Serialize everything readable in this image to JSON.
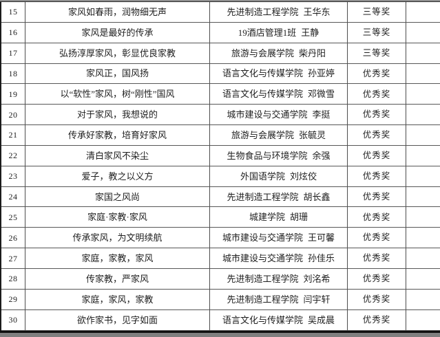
{
  "page": {
    "background": "#ffffff",
    "top_edge_color": "#8f8f8f",
    "bottom_edge_color": "#7f7f7f",
    "grid_line_color": "#4c4c4c",
    "text_color": "#1e1e1e"
  },
  "table": {
    "rows": [
      {
        "no": "15",
        "title": "家风如春雨，润物细无声",
        "affiliation": "先进制造工程学院",
        "name": "王华东",
        "award": "三等奖"
      },
      {
        "no": "16",
        "title": "家风是最好的传承",
        "affiliation": "19酒店管理1班",
        "name": "王静",
        "award": "三等奖"
      },
      {
        "no": "17",
        "title": "弘扬淳厚家风，彰显优良家教",
        "affiliation": "旅游与会展学院",
        "name": "柴丹阳",
        "award": "三等奖"
      },
      {
        "no": "18",
        "title": "家风正，国风扬",
        "affiliation": "语言文化与传媒学院",
        "name": "孙亚婷",
        "award": "优秀奖"
      },
      {
        "no": "19",
        "title": "以“软性”家风，树“刚性”国风",
        "affiliation": "语言文化与传媒学院",
        "name": "邓微雪",
        "award": "优秀奖"
      },
      {
        "no": "20",
        "title": "对于家风，我想说的",
        "affiliation": "城市建设与交通学院",
        "name": "李挺",
        "award": "优秀奖"
      },
      {
        "no": "21",
        "title": "传承好家教，培育好家风",
        "affiliation": "旅游与会展学院",
        "name": "张毓灵",
        "award": "优秀奖"
      },
      {
        "no": "22",
        "title": "清白家风不染尘",
        "affiliation": "生物食品与环境学院",
        "name": "余强",
        "award": "优秀奖"
      },
      {
        "no": "23",
        "title": "爱子，教之以义方",
        "affiliation": "外国语学院",
        "name": "刘炫佼",
        "award": "优秀奖"
      },
      {
        "no": "24",
        "title": "家国之风尚",
        "affiliation": "先进制造工程学院",
        "name": "胡长鑫",
        "award": "优秀奖"
      },
      {
        "no": "25",
        "title": "家庭·家教·家风",
        "affiliation": "城建学院",
        "name": "胡珊",
        "award": "优秀奖"
      },
      {
        "no": "26",
        "title": "传承家风，为文明续航",
        "affiliation": "城市建设与交通学院",
        "name": "王可馨",
        "award": "优秀奖"
      },
      {
        "no": "27",
        "title": "家庭，家教，家风",
        "affiliation": "城市建设与交通学院",
        "name": "孙佳乐",
        "award": "优秀奖"
      },
      {
        "no": "28",
        "title": "传家教，严家风",
        "affiliation": "先进制造工程学院",
        "name": "刘洺希",
        "award": "优秀奖"
      },
      {
        "no": "29",
        "title": "家庭，家风，家教",
        "affiliation": "先进制造工程学院",
        "name": "闫宇轩",
        "award": "优秀奖"
      },
      {
        "no": "30",
        "title": "欲作家书，见字如面",
        "affiliation": "语言文化与传媒学院",
        "name": "吴成晨",
        "award": "优秀奖"
      }
    ]
  }
}
